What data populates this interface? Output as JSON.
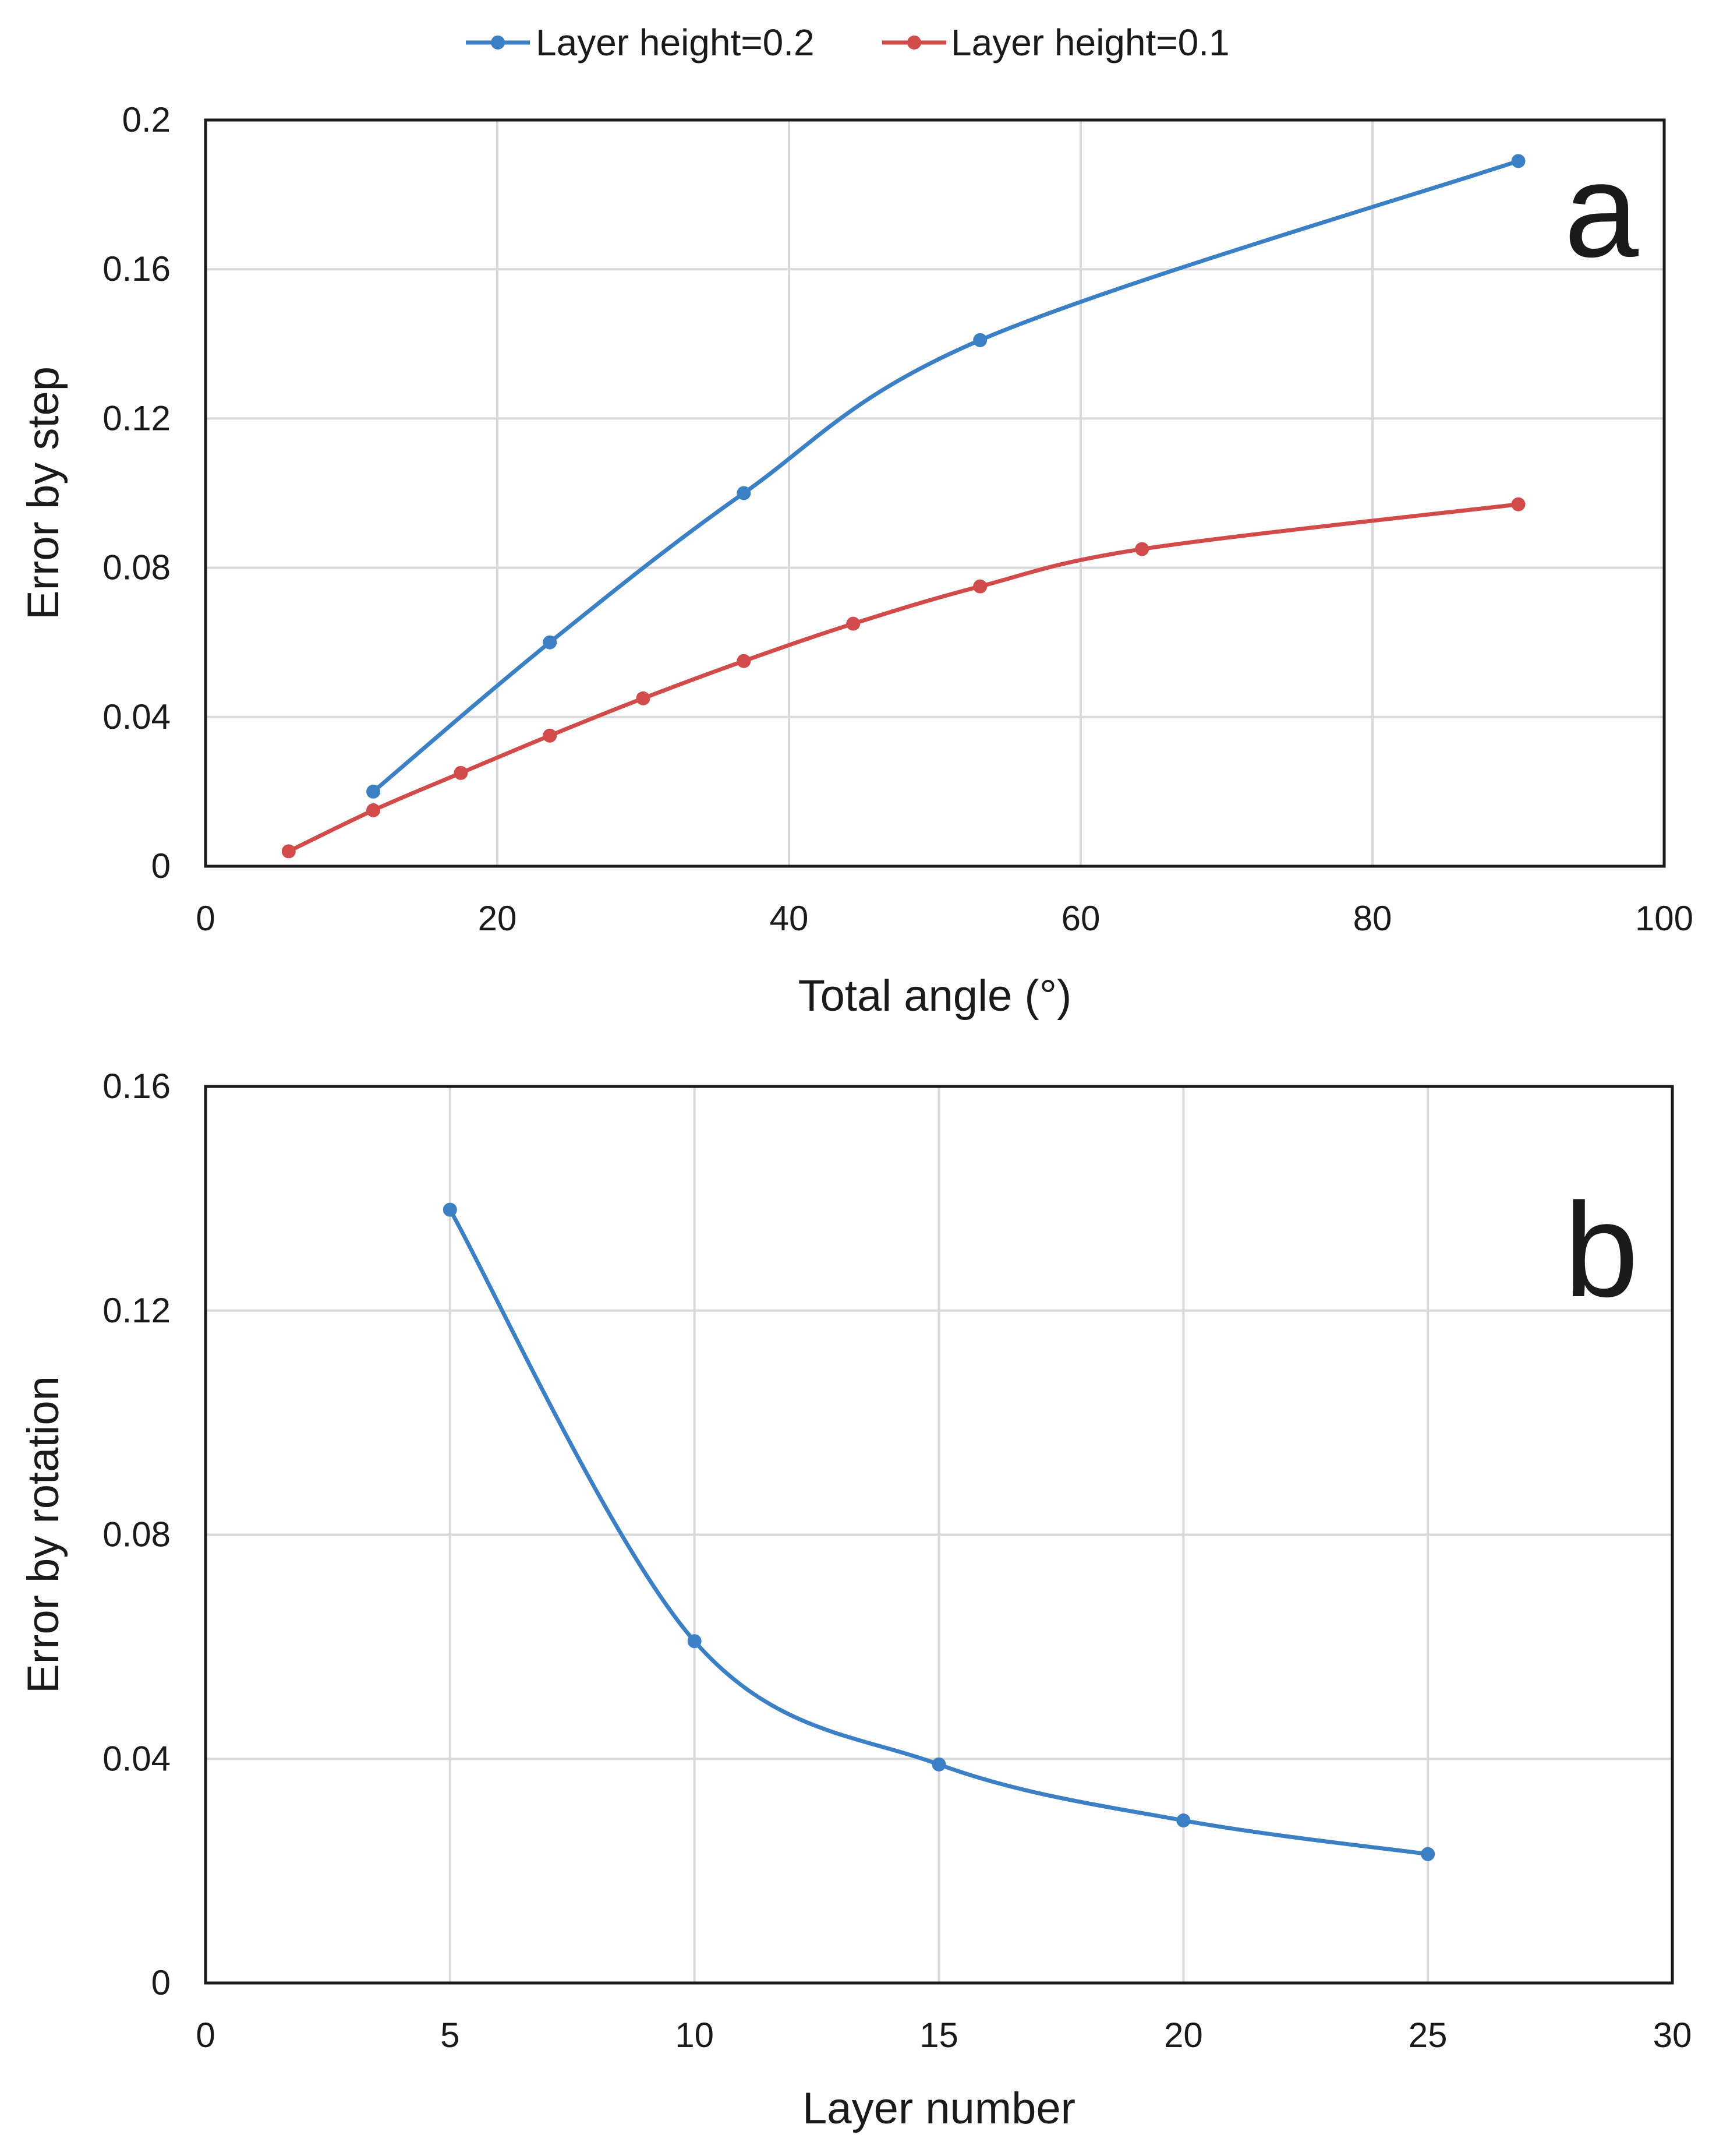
{
  "chart_data": [
    {
      "panel": "a",
      "type": "line",
      "xlabel": "Total angle (°)",
      "ylabel": "Error by step",
      "xlim": [
        0,
        100
      ],
      "ylim": [
        0,
        0.2
      ],
      "xticks": [
        0,
        20,
        40,
        60,
        80,
        100
      ],
      "yticks": [
        0,
        0.04,
        0.08,
        0.12,
        0.16,
        0.2
      ],
      "ytick_labels": [
        "0",
        "0.04",
        "0.08",
        "0.12",
        "0.16",
        "0.2"
      ],
      "grid": true,
      "legend_position": "top-center",
      "series": [
        {
          "name": "Layer height=0.2",
          "color": "#3b7fc4",
          "x": [
            11.5,
            23.6,
            36.9,
            53.1,
            90
          ],
          "y": [
            0.02,
            0.06,
            0.1,
            0.141,
            0.189
          ]
        },
        {
          "name": "Layer height=0.1",
          "color": "#d24b4b",
          "x": [
            5.7,
            11.5,
            17.5,
            23.6,
            30,
            36.9,
            44.4,
            53.1,
            64.2,
            90
          ],
          "y": [
            0.004,
            0.015,
            0.025,
            0.035,
            0.045,
            0.055,
            0.065,
            0.075,
            0.085,
            0.097
          ]
        }
      ]
    },
    {
      "panel": "b",
      "type": "line",
      "xlabel": "Layer number",
      "ylabel": "Error by rotation",
      "xlim": [
        0,
        30
      ],
      "ylim": [
        0,
        0.16
      ],
      "xticks": [
        0,
        5,
        10,
        15,
        20,
        25,
        30
      ],
      "yticks": [
        0,
        0.04,
        0.08,
        0.12,
        0.16
      ],
      "ytick_labels": [
        "0",
        "0.04",
        "0.08",
        "0.12",
        "0.16"
      ],
      "grid": true,
      "series": [
        {
          "name": "",
          "color": "#3b7fc4",
          "x": [
            5,
            10,
            15,
            20,
            25
          ],
          "y": [
            0.138,
            0.061,
            0.039,
            0.029,
            0.023
          ]
        }
      ]
    }
  ]
}
